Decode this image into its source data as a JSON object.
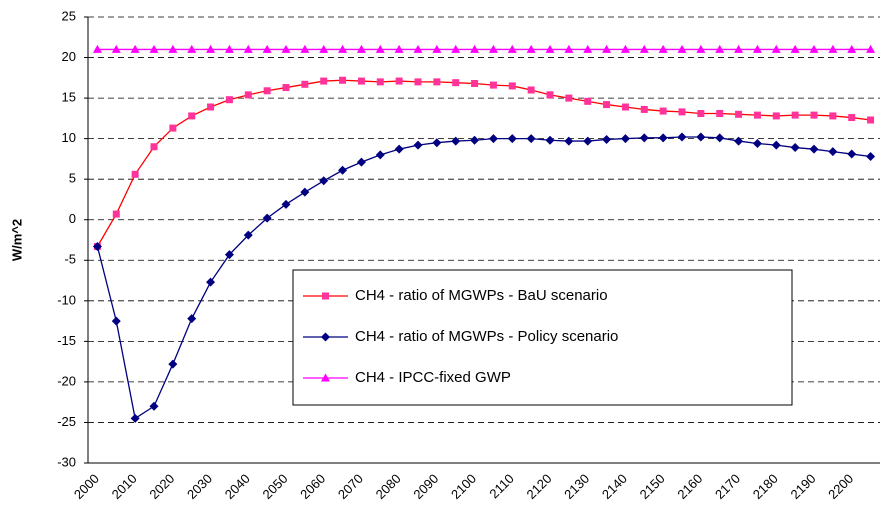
{
  "chart_data": {
    "type": "line",
    "y_label": "W/m^2",
    "categories": [
      "2000",
      null,
      "2010",
      null,
      "2020",
      null,
      "2030",
      null,
      "2040",
      null,
      "2050",
      null,
      "2060",
      null,
      "2070",
      null,
      "2080",
      null,
      "2090",
      null,
      "2100",
      null,
      "2110",
      null,
      "2120",
      null,
      "2130",
      null,
      "2140",
      null,
      "2150",
      null,
      "2160",
      null,
      "2170",
      null,
      "2180",
      null,
      "2190",
      null,
      "2200",
      null
    ],
    "series": [
      {
        "name": "CH4 - ratio of MGWPs - BaU scenario",
        "color": "#ff0000",
        "marker_color": "#ff3399",
        "marker": "square",
        "values": [
          -3.3,
          0.7,
          5.6,
          9.0,
          11.3,
          12.8,
          13.9,
          14.8,
          15.4,
          15.9,
          16.3,
          16.7,
          17.1,
          17.2,
          17.1,
          17.0,
          17.1,
          17.0,
          17.0,
          16.9,
          16.8,
          16.6,
          16.5,
          16.0,
          15.4,
          15.0,
          14.6,
          14.2,
          13.9,
          13.6,
          13.4,
          13.3,
          13.1,
          13.1,
          13.0,
          12.9,
          12.8,
          12.9,
          12.9,
          12.8,
          12.6,
          12.3
        ]
      },
      {
        "name": "CH4 - ratio of MGWPs - Policy scenario",
        "color": "#000080",
        "marker_color": "#000080",
        "marker": "diamond",
        "values": [
          -3.3,
          -12.5,
          -24.5,
          -23.0,
          -17.8,
          -12.2,
          -7.7,
          -4.3,
          -1.9,
          0.2,
          1.9,
          3.4,
          4.8,
          6.1,
          7.1,
          8.0,
          8.7,
          9.2,
          9.5,
          9.7,
          9.8,
          10.0,
          10.0,
          10.0,
          9.8,
          9.7,
          9.7,
          9.9,
          10.0,
          10.1,
          10.1,
          10.2,
          10.2,
          10.1,
          9.7,
          9.4,
          9.2,
          8.9,
          8.7,
          8.4,
          8.1,
          7.8
        ]
      },
      {
        "name": "CH4 - IPCC-fixed GWP",
        "color": "#ff00ff",
        "marker_color": "#ff00ff",
        "marker": "triangle",
        "values": [
          21,
          21,
          21,
          21,
          21,
          21,
          21,
          21,
          21,
          21,
          21,
          21,
          21,
          21,
          21,
          21,
          21,
          21,
          21,
          21,
          21,
          21,
          21,
          21,
          21,
          21,
          21,
          21,
          21,
          21,
          21,
          21,
          21,
          21,
          21,
          21,
          21,
          21,
          21,
          21,
          21,
          21
        ]
      }
    ],
    "ylim": [
      -30,
      25
    ],
    "yticks": [
      -30,
      -25,
      -20,
      -15,
      -10,
      -5,
      0,
      5,
      10,
      15,
      20,
      25
    ],
    "grid": true,
    "legend": "center-right"
  }
}
